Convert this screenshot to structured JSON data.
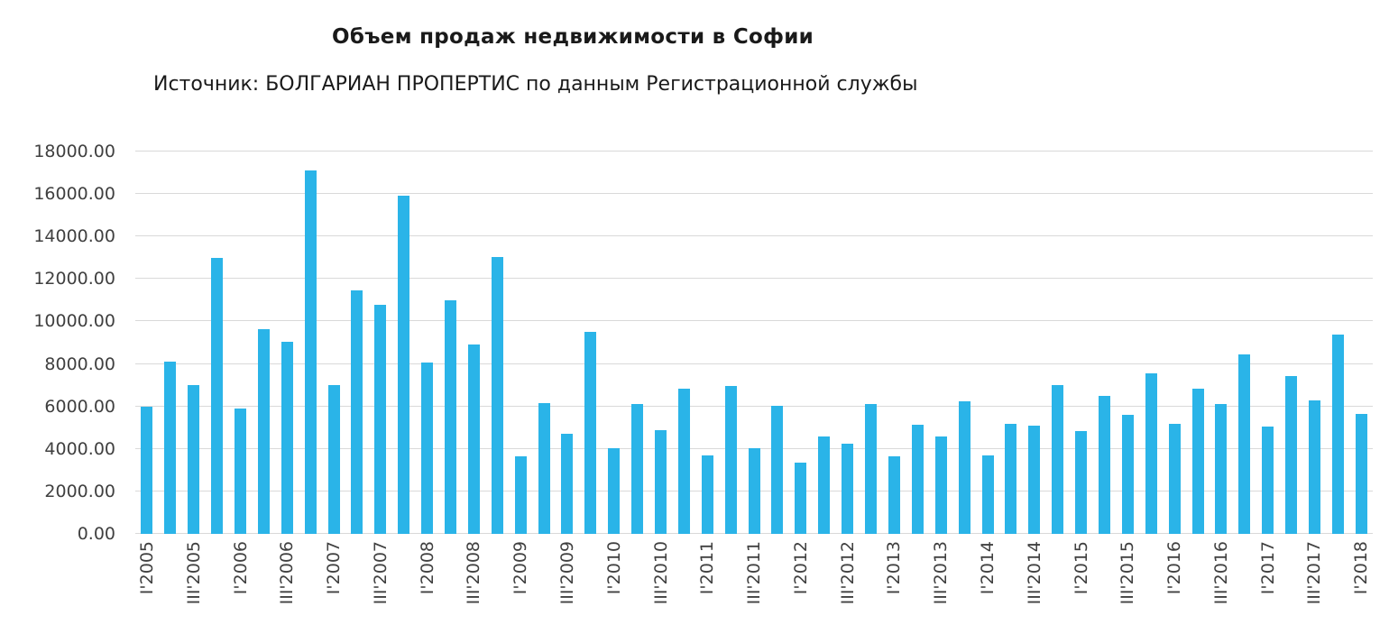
{
  "chart": {
    "title": "Объем продаж недвижимости в Софии",
    "subtitle": "Источник: БОЛГАРИАН ПРОПЕРТИС по данным Регистрационной службы"
  },
  "chart_data": {
    "type": "bar",
    "title": "Объем продаж недвижимости в Софии",
    "subtitle": "Источник: БОЛГАРИАН ПРОПЕРТИС по данным Регистрационной службы",
    "bar_color": "#2AB4E8",
    "grid": true,
    "legend": "none",
    "ylim": [
      0,
      18000
    ],
    "y_tick_step": 2000,
    "y_tick_labels": [
      "0.00",
      "2000.00",
      "4000.00",
      "6000.00",
      "8000.00",
      "10000.00",
      "12000.00",
      "14000.00",
      "16000.00",
      "18000.00"
    ],
    "label_every": 2,
    "x_tick_labels": [
      "I'2005",
      "III'2005",
      "I'2006",
      "III'2006",
      "I'2007",
      "III'2007",
      "I'2008",
      "III'2008",
      "I'2009",
      "III'2009",
      "I'2010",
      "III'2010",
      "I'2011",
      "III'2011",
      "I'2012",
      "III'2012",
      "I'2013",
      "III'2013",
      "I'2014",
      "III'2014",
      "I'2015",
      "III'2015",
      "I'2016",
      "III'2016",
      "I'2017",
      "III'2017",
      "I'2018"
    ],
    "values": [
      6000,
      8100,
      7000,
      13000,
      5900,
      9650,
      9050,
      17100,
      7000,
      11450,
      10800,
      15900,
      8050,
      11000,
      8900,
      13050,
      3650,
      6150,
      4700,
      9500,
      4050,
      6100,
      4900,
      6850,
      3700,
      6950,
      4050,
      6050,
      3350,
      4600,
      4250,
      6100,
      3650,
      5150,
      4600,
      6250,
      3700,
      5200,
      5100,
      7000,
      4850,
      6500,
      5600,
      7550,
      5200,
      6850,
      6100,
      8450,
      5050,
      7450,
      6300,
      9400,
      5650
    ]
  }
}
